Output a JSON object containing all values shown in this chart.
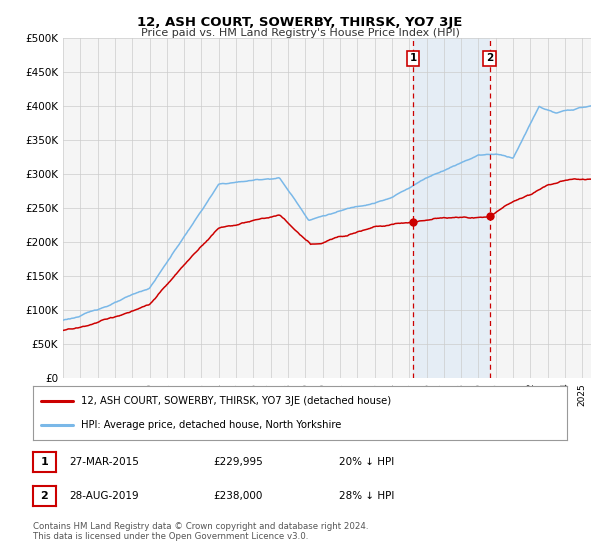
{
  "title": "12, ASH COURT, SOWERBY, THIRSK, YO7 3JE",
  "subtitle": "Price paid vs. HM Land Registry's House Price Index (HPI)",
  "hpi_color": "#7ab8e8",
  "price_color": "#cc0000",
  "vline_color": "#cc0000",
  "shade_color": "#c8dff5",
  "background_color": "#ffffff",
  "plot_bg_color": "#f5f5f5",
  "grid_color": "#cccccc",
  "ylim": [
    0,
    500000
  ],
  "yticks": [
    0,
    50000,
    100000,
    150000,
    200000,
    250000,
    300000,
    350000,
    400000,
    450000,
    500000
  ],
  "transaction1": {
    "date": "27-MAR-2015",
    "price": 229995,
    "label": "1",
    "x": 2015.23
  },
  "transaction2": {
    "date": "28-AUG-2019",
    "price": 238000,
    "label": "2",
    "x": 2019.65
  },
  "legend_label1": "12, ASH COURT, SOWERBY, THIRSK, YO7 3JE (detached house)",
  "legend_label2": "HPI: Average price, detached house, North Yorkshire",
  "table_row1": [
    "1",
    "27-MAR-2015",
    "£229,995",
    "20% ↓ HPI"
  ],
  "table_row2": [
    "2",
    "28-AUG-2019",
    "£238,000",
    "28% ↓ HPI"
  ],
  "footnote": "Contains HM Land Registry data © Crown copyright and database right 2024.\nThis data is licensed under the Open Government Licence v3.0.",
  "xmin": 1995,
  "xmax": 2025.5
}
